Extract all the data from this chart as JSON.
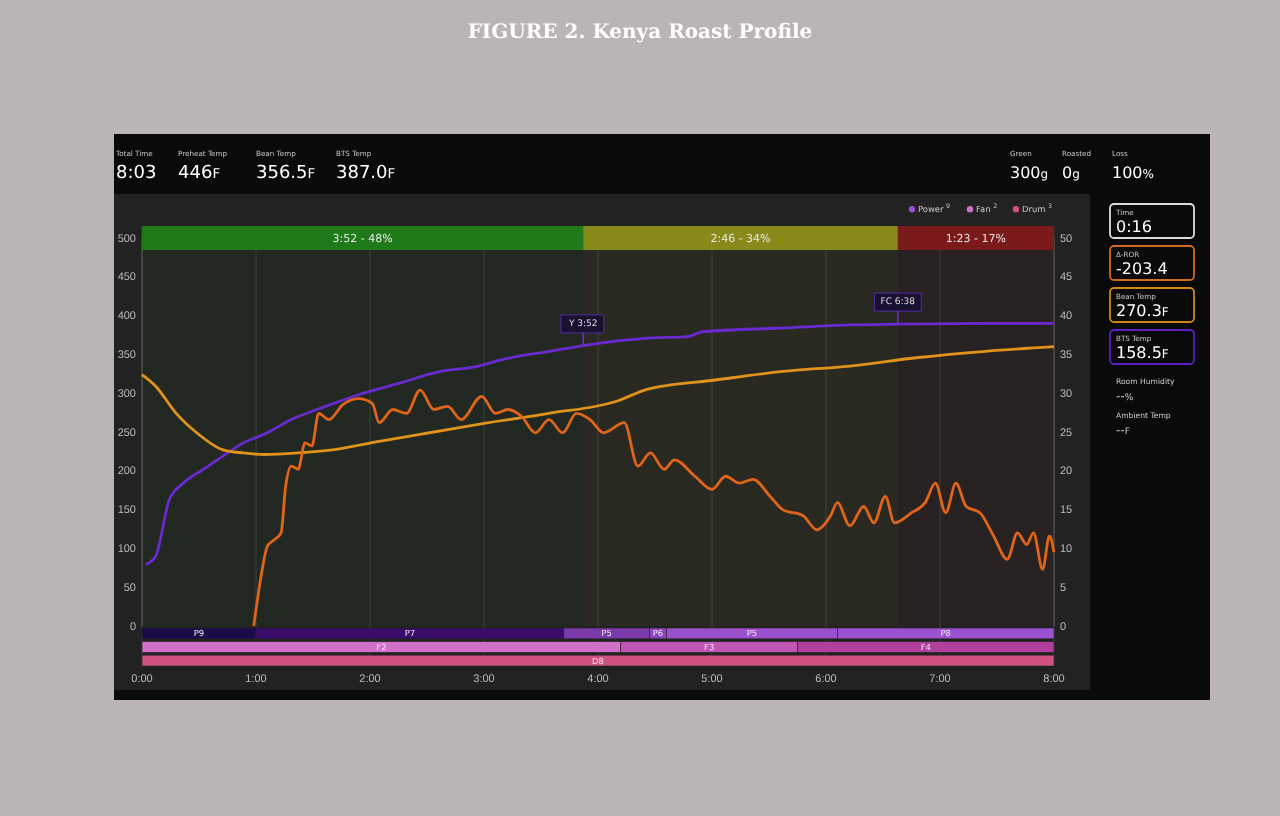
{
  "chart_data": [
    {
      "type": "line",
      "title": "FIGURE 2. Kenya Roast Profile",
      "xlim": [
        0,
        8
      ],
      "xticks": [
        {
          "value": 0,
          "label": null
        },
        {
          "value": 1,
          "label": null
        },
        {
          "value": 2,
          "label": null
        },
        {
          "value": 3,
          "label": null
        },
        {
          "value": 4,
          "label": null
        },
        {
          "value": 5,
          "label": null
        },
        {
          "value": 6,
          "label": null
        },
        {
          "value": 7,
          "label": null
        },
        {
          "value": 8,
          "label": null
        }
      ],
      "ylim": [
        0,
        500
      ],
      "yticks": [
        0,
        50,
        100,
        150,
        200,
        250,
        300,
        350,
        400,
        450,
        500
      ],
      "y2lim": [
        0,
        50
      ],
      "y2ticks": [
        0,
        5,
        10,
        15,
        20,
        25,
        30,
        35,
        40,
        45,
        50
      ],
      "grid": "x",
      "tick_labels": "y",
      "bands": [
        {
          "axis": "x",
          "from": 0,
          "to": 3.87,
          "label": "3:52 - 48%",
          "color": "#1f7a1a"
        },
        {
          "axis": "x",
          "from": 3.87,
          "to": 6.63,
          "label": "2:46 - 34%",
          "color": "#8a8a1a"
        },
        {
          "axis": "x",
          "from": 6.63,
          "to": 8.0,
          "label": "1:23 - 17%",
          "color": "#7a1a1a"
        }
      ],
      "series": [
        {
          "color": "#6a2ad0",
          "x": [
            0.03,
            0.12,
            0.24,
            0.36,
            0.54,
            0.71,
            0.89,
            1.07,
            1.31,
            1.61,
            1.9,
            2.26,
            2.62,
            2.92,
            3.15,
            3.57,
            3.99,
            4.43,
            4.79,
            4.91,
            5.62,
            6.21,
            6.63,
            7.4,
            8.0
          ],
          "values": [
            79,
            90,
            163,
            184,
            202,
            219,
            236,
            247,
            266,
            283,
            298,
            313,
            328,
            334,
            343,
            354,
            364,
            371,
            373,
            379,
            384,
            388,
            389,
            390,
            390
          ]
        },
        {
          "color": "#e0921a",
          "x": [
            0,
            0.12,
            0.3,
            0.48,
            0.71,
            0.89,
            1.07,
            1.37,
            1.67,
            2.08,
            2.56,
            3.04,
            3.57,
            4.17,
            4.43,
            5.03,
            5.62,
            6.21,
            6.81,
            7.4,
            8.0
          ],
          "values": [
            324,
            309,
            274,
            249,
            227,
            223,
            221,
            223,
            227,
            238,
            250,
            262,
            274,
            290,
            305,
            317,
            328,
            335,
            346,
            354,
            360
          ]
        },
        {
          "color": "#e0641a",
          "axis": "y2",
          "x": [
            0.98,
            1.04,
            1.1,
            1.16,
            1.22,
            1.26,
            1.31,
            1.37,
            1.43,
            1.49,
            1.55,
            1.64,
            1.76,
            1.9,
            2.02,
            2.08,
            2.2,
            2.32,
            2.44,
            2.56,
            2.68,
            2.8,
            2.98,
            3.1,
            3.21,
            3.33,
            3.45,
            3.57,
            3.69,
            3.81,
            3.93,
            4.05,
            4.23,
            4.35,
            4.46,
            4.58,
            4.67,
            4.85,
            5.0,
            5.12,
            5.24,
            5.36,
            5.51,
            5.62,
            5.8,
            5.92,
            6.04,
            6.1,
            6.21,
            6.33,
            6.42,
            6.52,
            6.6,
            6.75,
            6.87,
            6.96,
            7.05,
            7.14,
            7.23,
            7.35,
            7.47,
            7.59,
            7.68,
            7.76,
            7.82,
            7.9,
            7.96,
            8.0
          ],
          "values": [
            0,
            6.0,
            10.3,
            11.1,
            12.0,
            18.0,
            20.6,
            20.2,
            23.6,
            23.2,
            27.4,
            26.6,
            28.5,
            29.3,
            28.7,
            26.2,
            27.9,
            27.4,
            30.4,
            27.9,
            28.3,
            26.6,
            29.6,
            27.4,
            27.9,
            27.0,
            24.9,
            26.6,
            24.9,
            27.4,
            26.6,
            24.9,
            26.2,
            20.6,
            22.3,
            20.2,
            21.4,
            19.3,
            17.6,
            19.3,
            18.4,
            18.9,
            16.7,
            15.0,
            14.2,
            12.4,
            14.2,
            15.9,
            12.9,
            15.4,
            13.3,
            16.7,
            13.3,
            14.6,
            15.9,
            18.4,
            14.6,
            18.4,
            15.4,
            14.6,
            11.6,
            8.6,
            12.0,
            10.5,
            12.0,
            7.3,
            11.6,
            9.5
          ]
        }
      ],
      "annotations": [
        "Total Time",
        "8:03",
        "Preheat Temp",
        "446$_{F}$",
        "Bean Temp",
        "356.5$_{F}$",
        "BTS Temp",
        "387.0$_{F}$",
        "Green",
        "300$_{g}$",
        "Roasted",
        "0$_{g}$",
        "Loss",
        "100$_{%}$",
        "Time",
        "0:16",
        "Δ-ROR",
        "-203.4",
        "Bean Temp",
        "270.3$_{F}$",
        "BTS Temp",
        "158.5$_{F}$",
        "Room Humidity",
        "--$_{%}$",
        "Ambient Temp",
        "--$_{F}$",
        "Power $^{9}$",
        "Fan $^{2}$",
        "Drum $^{3}$",
        {
          "text": "Y 3:52",
          "x": 3.87,
          "y": 361
        },
        {
          "text": "FC 6:38",
          "x": 6.63,
          "y": 389
        }
      ]
    },
    {
      "type": "bar",
      "orientation": "horizontal",
      "stacked": true,
      "categories": [
        null,
        null,
        null
      ],
      "xlim": [
        0,
        8
      ],
      "xticks": [
        {
          "value": 0,
          "label": "0:00"
        },
        {
          "value": 1,
          "label": "1:00"
        },
        {
          "value": 2,
          "label": "2:00"
        },
        {
          "value": 3,
          "label": "3:00"
        },
        {
          "value": 4,
          "label": "4:00"
        },
        {
          "value": 5,
          "label": "5:00"
        },
        {
          "value": 6,
          "label": "6:00"
        },
        {
          "value": 7,
          "label": "7:00"
        },
        {
          "value": 8,
          "label": "8:00"
        }
      ],
      "tick_labels": "x",
      "series": [
        {
          "values": [
            1.0,
            4.2,
            8.0
          ],
          "colors": [
            "#1a0c4a",
            "#d070c8",
            "#d05080"
          ],
          "value_labels": [
            "P9",
            "F2",
            "D8"
          ]
        },
        {
          "values": [
            2.7,
            1.55,
            null
          ],
          "colors": [
            "#3a0c6c",
            "#c056b4",
            null
          ],
          "value_labels": [
            "P7",
            "F3",
            null
          ]
        },
        {
          "values": [
            0.75,
            2.25,
            null
          ],
          "colors": [
            "#7a3aaa",
            "#b0409c",
            null
          ],
          "value_labels": [
            "P5",
            "F4",
            null
          ]
        },
        {
          "values": [
            0.15,
            null,
            null
          ],
          "colors": [
            "#8a44c0",
            null,
            null
          ],
          "value_labels": [
            "P6",
            null,
            null
          ]
        },
        {
          "values": [
            1.5,
            null,
            null
          ],
          "colors": [
            "#9a50cc",
            null,
            null
          ],
          "value_labels": [
            "P5",
            null,
            null
          ]
        },
        {
          "values": [
            1.9,
            null,
            null
          ],
          "colors": [
            "#9a52d0",
            null,
            null
          ],
          "value_labels": [
            "P8",
            null,
            null
          ]
        }
      ]
    }
  ]
}
